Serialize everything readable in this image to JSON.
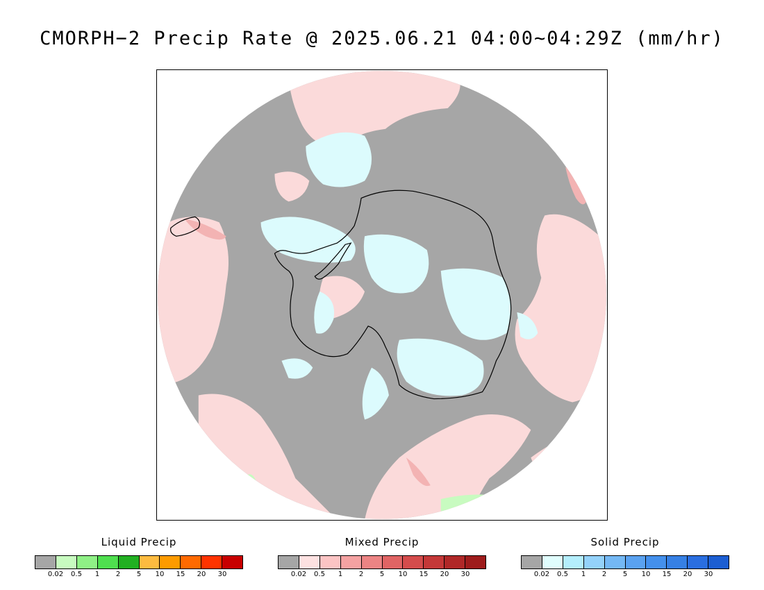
{
  "title": "CMORPH−2 Precip Rate @ 2025.06.21 04:00~04:29Z (mm/hr)",
  "map": {
    "projection": "south-polar-stereographic",
    "colors": {
      "no_precip": "#a6a6a6",
      "mixed_light": "#fbdada",
      "mixed_moderate": "#f3b3b3",
      "solid_light": "#dcfbfd",
      "liquid_light": "#c8fbc0",
      "coastline": "#000000"
    }
  },
  "legends": [
    {
      "id": "liquid",
      "title": "Liquid Precip",
      "colors": [
        "#a6a6a6",
        "#c8fbc0",
        "#8ff086",
        "#4fdf4f",
        "#22b022",
        "#fdbb40",
        "#fd9b00",
        "#ff6a00",
        "#ff3300",
        "#c80000"
      ],
      "ticks": [
        "0.02",
        "0.5",
        "1",
        "2",
        "5",
        "10",
        "15",
        "20",
        "30"
      ]
    },
    {
      "id": "mixed",
      "title": "Mixed Precip",
      "colors": [
        "#a6a6a6",
        "#fde1e1",
        "#fbc4c4",
        "#f4a2a2",
        "#ec8484",
        "#e06464",
        "#d44c4c",
        "#c43838",
        "#b02828",
        "#9e1c1c"
      ],
      "ticks": [
        "0.02",
        "0.5",
        "1",
        "2",
        "5",
        "10",
        "15",
        "20",
        "30"
      ]
    },
    {
      "id": "solid",
      "title": "Solid Precip",
      "colors": [
        "#a6a6a6",
        "#e0fdfd",
        "#b4eefc",
        "#94d2fa",
        "#74b8f4",
        "#5aa2f0",
        "#4490ec",
        "#3680e4",
        "#2a6ee0",
        "#1c5ed2"
      ],
      "ticks": [
        "0.02",
        "0.5",
        "1",
        "2",
        "5",
        "10",
        "15",
        "20",
        "30"
      ]
    }
  ]
}
